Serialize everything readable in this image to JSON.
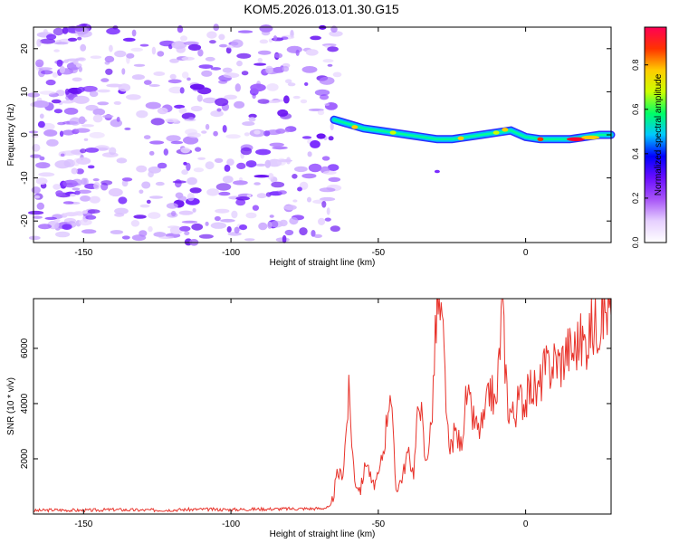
{
  "title": "KOM5.2026.013.01.30.G15",
  "chart_data": [
    {
      "type": "heatmap",
      "xlabel": "Height of straight line (km)",
      "ylabel": "Frequency (Hz)",
      "xlim": [
        -167,
        29
      ],
      "ylim": [
        -25,
        25
      ],
      "xticks": [
        -150,
        -100,
        -50,
        0
      ],
      "yticks": [
        -20,
        -10,
        0,
        10,
        20
      ],
      "ridge": {
        "x": [
          -65,
          -60,
          -55,
          -50,
          -45,
          -40,
          -35,
          -30,
          -25,
          -20,
          -15,
          -10,
          -5,
          0,
          5,
          10,
          15,
          20,
          25,
          29
        ],
        "freq": [
          3.5,
          2.5,
          1.5,
          1,
          0.5,
          0,
          -0.5,
          -1,
          -1,
          -0.5,
          0,
          0.5,
          1,
          -0.5,
          -1,
          -1,
          -1,
          -0.5,
          0,
          0
        ]
      },
      "noise_region_x": [
        -167,
        -65
      ],
      "colorbar": {
        "label": "Normalized spectral amplitude",
        "range": [
          0,
          0.97
        ],
        "ticks": [
          "0.0",
          "0.2",
          "0.4",
          "0.6",
          "0.8"
        ],
        "colors": [
          "#ffffff",
          "#e6d0ff",
          "#a855f7",
          "#6a0dff",
          "#0000ff",
          "#00c8ff",
          "#00ff66",
          "#ccff00",
          "#ffcc00",
          "#ff3300",
          "#ff0055"
        ]
      }
    },
    {
      "type": "line",
      "xlabel": "Height of straight line (km)",
      "ylabel": "SNR (10 * v/v)",
      "xlim": [
        -167,
        29
      ],
      "ylim": [
        0,
        7800
      ],
      "xticks": [
        -150,
        -100,
        -50,
        0
      ],
      "yticks": [
        2000,
        4000,
        6000
      ],
      "color": "#e8332b",
      "series": {
        "name": "SNR",
        "x": [
          -167,
          -160,
          -150,
          -140,
          -130,
          -120,
          -110,
          -100,
          -90,
          -80,
          -70,
          -66,
          -64,
          -62,
          -60,
          -58,
          -56,
          -54,
          -52,
          -50,
          -48,
          -46,
          -44,
          -42,
          -40,
          -38,
          -36,
          -34,
          -32,
          -30,
          -28,
          -26,
          -24,
          -22,
          -20,
          -18,
          -16,
          -14,
          -12,
          -10,
          -8,
          -6,
          -4,
          -2,
          0,
          2,
          4,
          6,
          8,
          10,
          12,
          14,
          16,
          18,
          20,
          22,
          24,
          26,
          28,
          29
        ],
        "y": [
          120,
          150,
          130,
          160,
          140,
          150,
          170,
          160,
          180,
          190,
          200,
          250,
          1400,
          1500,
          4300,
          1200,
          900,
          2000,
          1000,
          1300,
          2500,
          4700,
          900,
          1300,
          2200,
          1500,
          4500,
          1800,
          3200,
          7700,
          6300,
          2100,
          3000,
          2500,
          4300,
          3500,
          3000,
          3400,
          4600,
          3800,
          7500,
          3900,
          3600,
          4200,
          4100,
          4700,
          4300,
          5200,
          5300,
          5600,
          5500,
          6000,
          5900,
          6300,
          6200,
          6700,
          6900,
          7300,
          7500,
          7200
        ]
      }
    }
  ]
}
